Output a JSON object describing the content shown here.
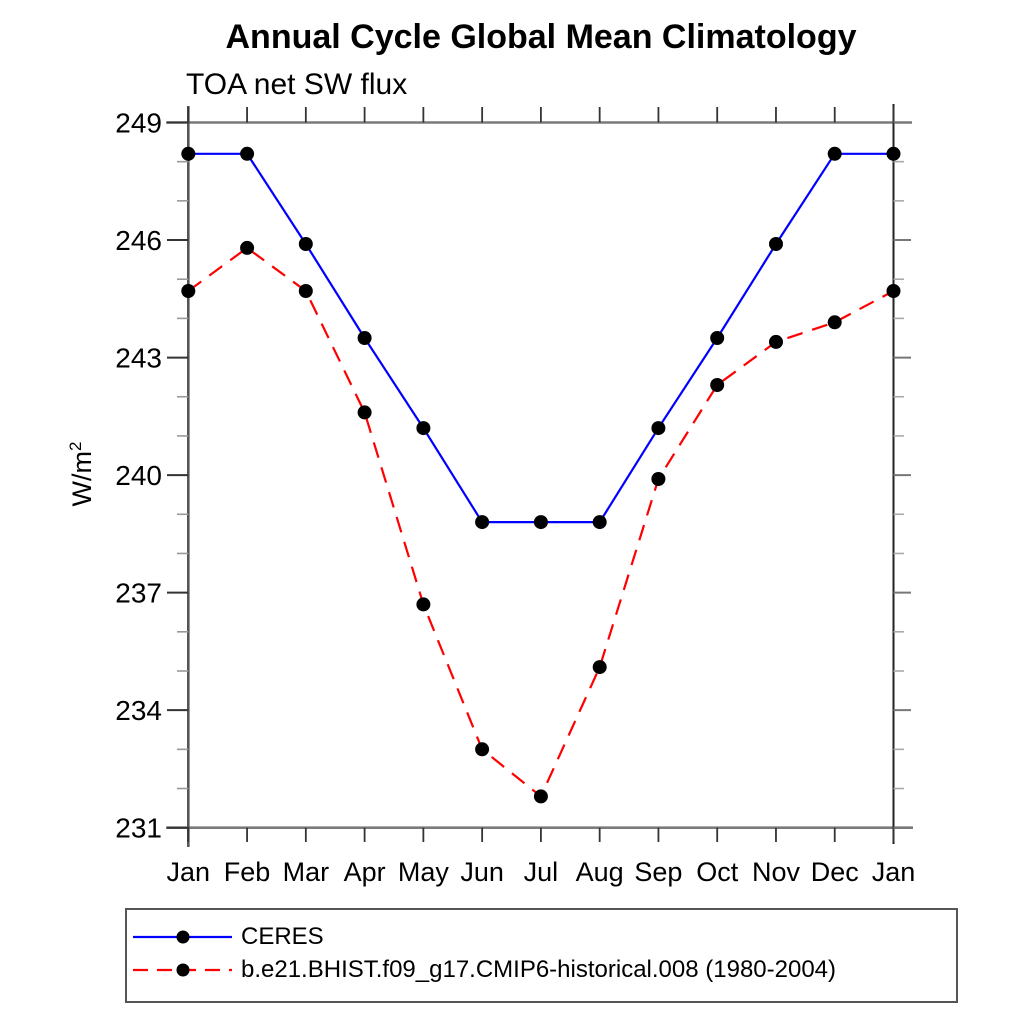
{
  "chart_data": {
    "type": "line",
    "title": "Annual Cycle Global Mean Climatology",
    "subtitle": "TOA net SW flux",
    "ylabel": {
      "base": "W/m",
      "sup": "2"
    },
    "xlabel": "",
    "categories": [
      "Jan",
      "Feb",
      "Mar",
      "Apr",
      "May",
      "Jun",
      "Jul",
      "Aug",
      "Sep",
      "Oct",
      "Nov",
      "Dec",
      "Jan"
    ],
    "ylim": [
      231,
      249
    ],
    "ytick_major": [
      231,
      234,
      237,
      240,
      243,
      246,
      249
    ],
    "ytick_minor_step": 1,
    "grid": false,
    "legend_position": "bottom-left-box",
    "marker": "filled-circle",
    "marker_color": "#000000",
    "series": [
      {
        "name": "CERES",
        "color": "#0000ff",
        "style": "solid",
        "values": [
          248.2,
          248.2,
          245.9,
          243.5,
          241.2,
          238.8,
          238.8,
          238.8,
          241.2,
          243.5,
          245.9,
          248.2,
          248.2
        ]
      },
      {
        "name": "b.e21.BHIST.f09_g17.CMIP6-historical.008 (1980-2004)",
        "color": "#ff0000",
        "style": "dashed",
        "values": [
          244.7,
          245.8,
          244.7,
          241.6,
          236.7,
          233.0,
          231.8,
          235.1,
          239.9,
          242.3,
          243.4,
          243.9,
          244.7
        ]
      }
    ]
  }
}
